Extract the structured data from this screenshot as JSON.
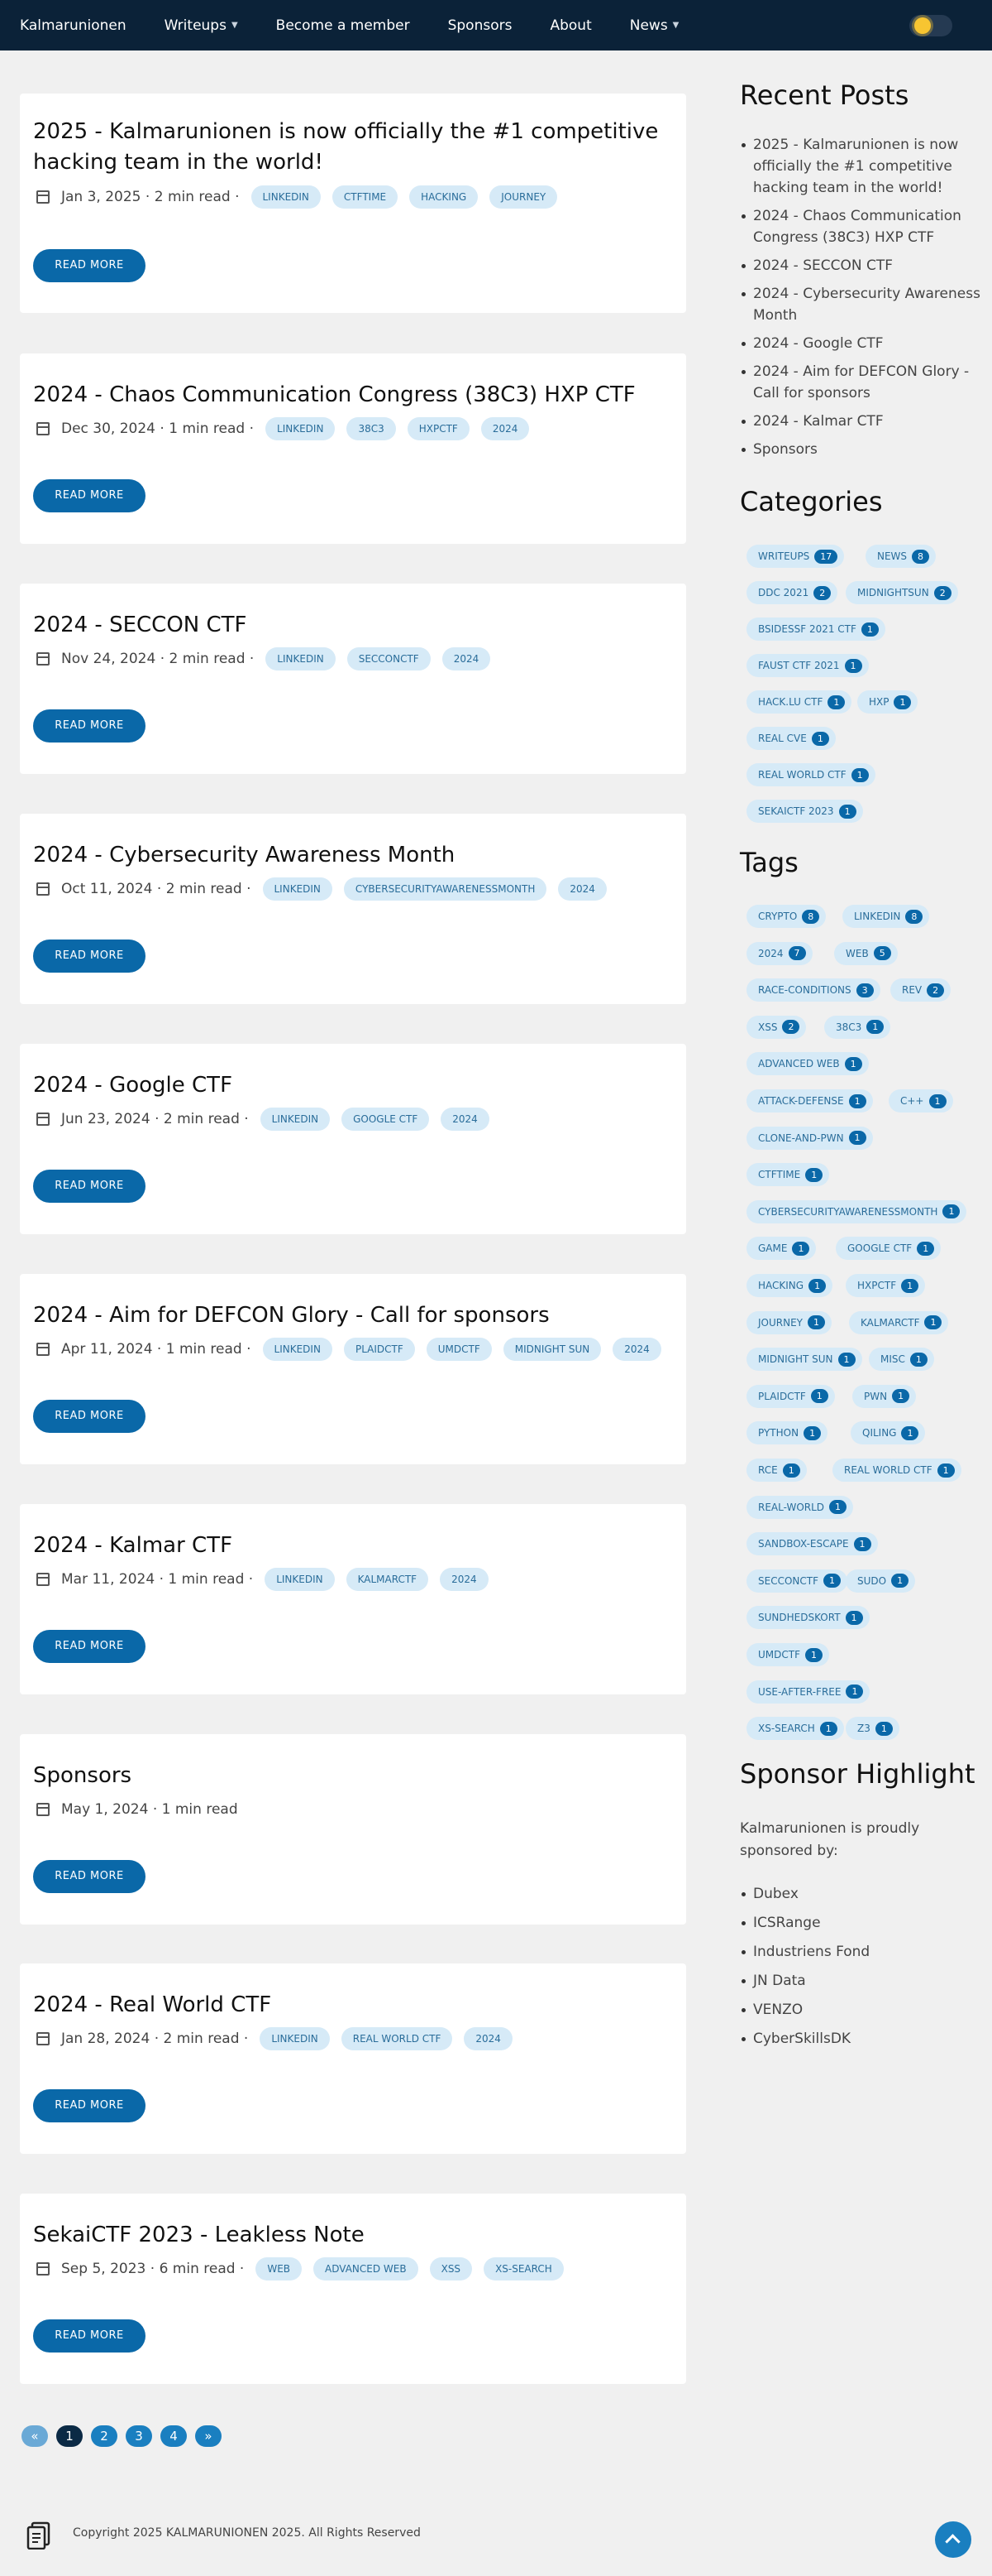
{
  "nav": {
    "brand": "Kalmarunionen",
    "items": [
      {
        "label": "Writeups",
        "dropdown": true
      },
      {
        "label": "Become a member",
        "dropdown": false
      },
      {
        "label": "Sponsors",
        "dropdown": false
      },
      {
        "label": "About",
        "dropdown": false
      },
      {
        "label": "News",
        "dropdown": true
      }
    ]
  },
  "posts": [
    {
      "title": "2025 - Kalmarunionen is now officially the #1 competitive hacking team in the world!",
      "date": "Jan 3, 2025",
      "read": "2 min read",
      "tags": [
        "LINKEDIN",
        "CTFTIME",
        "HACKING",
        "JOURNEY"
      ]
    },
    {
      "title": "2024 - Chaos Communication Congress (38C3) HXP CTF",
      "date": "Dec 30, 2024",
      "read": "1 min read",
      "tags": [
        "LINKEDIN",
        "38C3",
        "HXPCTF",
        "2024"
      ]
    },
    {
      "title": "2024 - SECCON CTF",
      "date": "Nov 24, 2024",
      "read": "2 min read",
      "tags": [
        "LINKEDIN",
        "SECCONCTF",
        "2024"
      ]
    },
    {
      "title": "2024 - Cybersecurity Awareness Month",
      "date": "Oct 11, 2024",
      "read": "2 min read",
      "tags": [
        "LINKEDIN",
        "CYBERSECURITYAWARENESSMONTH",
        "2024"
      ]
    },
    {
      "title": "2024 - Google CTF",
      "date": "Jun 23, 2024",
      "read": "2 min read",
      "tags": [
        "LINKEDIN",
        "GOOGLE CTF",
        "2024"
      ]
    },
    {
      "title": "2024 - Aim for DEFCON Glory - Call for sponsors",
      "date": "Apr 11, 2024",
      "read": "1 min read",
      "tags": [
        "LINKEDIN",
        "PLAIDCTF",
        "UMDCTF",
        "MIDNIGHT SUN",
        "2024"
      ]
    },
    {
      "title": "2024 - Kalmar CTF",
      "date": "Mar 11, 2024",
      "read": "1 min read",
      "tags": [
        "LINKEDIN",
        "KALMARCTF",
        "2024"
      ]
    },
    {
      "title": "Sponsors",
      "date": "May 1, 2024",
      "read": "1 min read",
      "tags": []
    },
    {
      "title": "2024 - Real World CTF",
      "date": "Jan 28, 2024",
      "read": "2 min read",
      "tags": [
        "LINKEDIN",
        "REAL WORLD CTF",
        "2024"
      ]
    },
    {
      "title": "SekaiCTF 2023 - Leakless Note",
      "date": "Sep 5, 2023",
      "read": "6 min read",
      "tags": [
        "WEB",
        "ADVANCED WEB",
        "XSS",
        "XS-SEARCH"
      ]
    }
  ],
  "read_more_label": "READ MORE",
  "sidebar": {
    "recent_title": "Recent Posts",
    "recent": [
      "2025 - Kalmarunionen is now officially the #1 competitive hacking team in the world!",
      "2024 - Chaos Communication Congress (38C3) HXP CTF",
      "2024 - SECCON CTF",
      "2024 - Cybersecurity Awareness Month",
      "2024 - Google CTF",
      "2024 - Aim for DEFCON Glory - Call for sponsors",
      "2024 - Kalmar CTF",
      "Sponsors"
    ],
    "categories_title": "Categories",
    "categories": [
      {
        "name": "WRITEUPS",
        "count": "17"
      },
      {
        "name": "NEWS",
        "count": "8"
      },
      {
        "name": "DDC 2021",
        "count": "2"
      },
      {
        "name": "MIDNIGHTSUN",
        "count": "2"
      },
      {
        "name": "BSIDESSF 2021 CTF",
        "count": "1"
      },
      {
        "name": "FAUST CTF 2021",
        "count": "1"
      },
      {
        "name": "HACK.LU CTF",
        "count": "1"
      },
      {
        "name": "HXP",
        "count": "1"
      },
      {
        "name": "REAL CVE",
        "count": "1"
      },
      {
        "name": "REAL WORLD CTF",
        "count": "1"
      },
      {
        "name": "SEKAICTF 2023",
        "count": "1"
      }
    ],
    "tags_title": "Tags",
    "tags": [
      {
        "name": "CRYPTO",
        "count": "8"
      },
      {
        "name": "LINKEDIN",
        "count": "8"
      },
      {
        "name": "2024",
        "count": "7"
      },
      {
        "name": "WEB",
        "count": "5"
      },
      {
        "name": "RACE-CONDITIONS",
        "count": "3"
      },
      {
        "name": "REV",
        "count": "2"
      },
      {
        "name": "XSS",
        "count": "2"
      },
      {
        "name": "38C3",
        "count": "1"
      },
      {
        "name": "ADVANCED WEB",
        "count": "1"
      },
      {
        "name": "ATTACK-DEFENSE",
        "count": "1"
      },
      {
        "name": "C++",
        "count": "1"
      },
      {
        "name": "CLONE-AND-PWN",
        "count": "1"
      },
      {
        "name": "CTFTIME",
        "count": "1"
      },
      {
        "name": "CYBERSECURITYAWARENESSMONTH",
        "count": "1"
      },
      {
        "name": "GAME",
        "count": "1"
      },
      {
        "name": "GOOGLE CTF",
        "count": "1"
      },
      {
        "name": "HACKING",
        "count": "1"
      },
      {
        "name": "HXPCTF",
        "count": "1"
      },
      {
        "name": "JOURNEY",
        "count": "1"
      },
      {
        "name": "KALMARCTF",
        "count": "1"
      },
      {
        "name": "MIDNIGHT SUN",
        "count": "1"
      },
      {
        "name": "MISC",
        "count": "1"
      },
      {
        "name": "PLAIDCTF",
        "count": "1"
      },
      {
        "name": "PWN",
        "count": "1"
      },
      {
        "name": "PYTHON",
        "count": "1"
      },
      {
        "name": "QILING",
        "count": "1"
      },
      {
        "name": "RCE",
        "count": "1"
      },
      {
        "name": "REAL WORLD CTF",
        "count": "1"
      },
      {
        "name": "REAL-WORLD",
        "count": "1"
      },
      {
        "name": "SANDBOX-ESCAPE",
        "count": "1"
      },
      {
        "name": "SECCONCTF",
        "count": "1"
      },
      {
        "name": "SUDO",
        "count": "1"
      },
      {
        "name": "SUNDHEDSKORT",
        "count": "1"
      },
      {
        "name": "UMDCTF",
        "count": "1"
      },
      {
        "name": "USE-AFTER-FREE",
        "count": "1"
      },
      {
        "name": "XS-SEARCH",
        "count": "1"
      },
      {
        "name": "Z3",
        "count": "1"
      }
    ],
    "sponsor_title": "Sponsor Highlight",
    "sponsor_intro": "Kalmarunionen is proudly sponsored by:",
    "sponsors": [
      "Dubex",
      "ICSRange",
      "Industriens Fond",
      "JN Data",
      "VENZO",
      "CyberSkillsDK"
    ]
  },
  "pagination": {
    "prev": "«",
    "pages": [
      "1",
      "2",
      "3",
      "4"
    ],
    "next": "»",
    "active": "1"
  },
  "footer": {
    "copyright": "Copyright 2025 KALMARUNIONEN 2025. All Rights Reserved"
  },
  "colors": {
    "navbar": "#0b2238",
    "accent": "#0a68a8",
    "tag_bg": "#d6eaf7"
  },
  "icons": {
    "calendar": "calendar-icon",
    "theme": "sun-icon",
    "footer": "document-icon",
    "back_to_top": "arrow-up-icon"
  }
}
